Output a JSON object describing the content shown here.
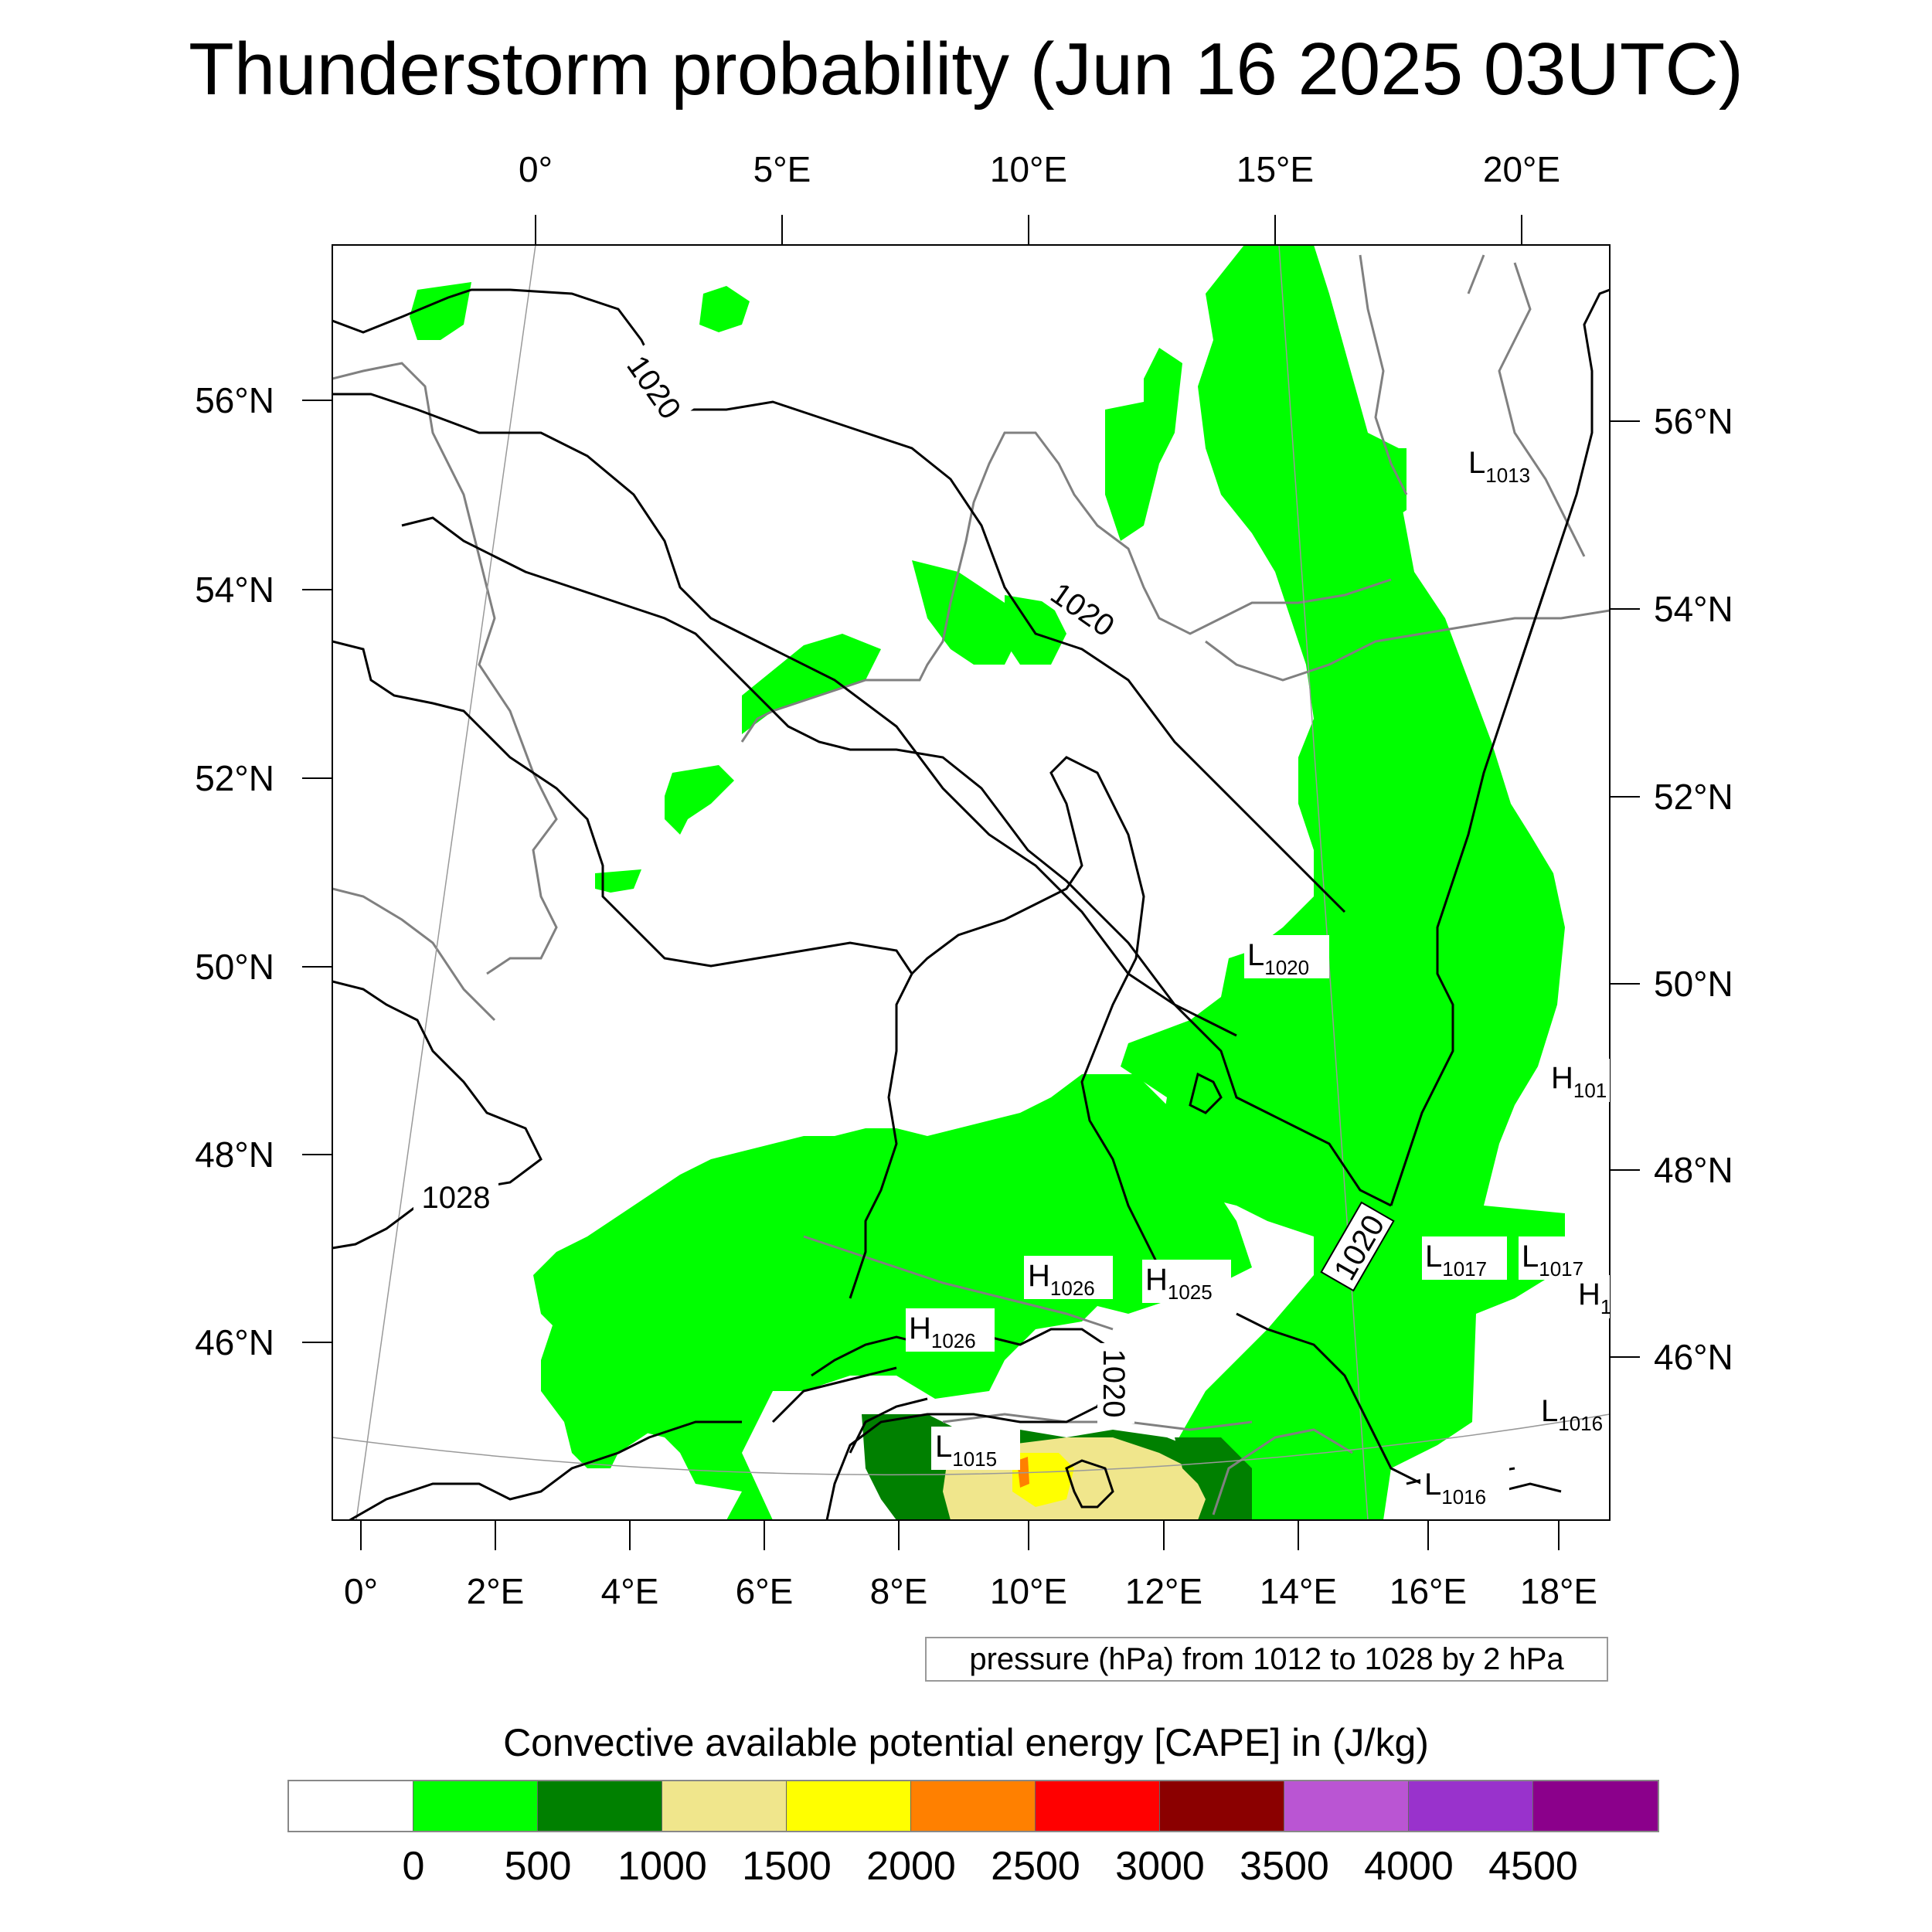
{
  "title": "Thunderstorm probability (Jun 16 2025 03UTC)",
  "map": {
    "top_lon_labels": [
      "0°",
      "5°E",
      "10°E",
      "15°E",
      "20°E"
    ],
    "bottom_lon_labels": [
      "0°",
      "2°E",
      "4°E",
      "6°E",
      "8°E",
      "10°E",
      "12°E",
      "14°E",
      "16°E",
      "18°E"
    ],
    "left_lat_labels": [
      "56°N",
      "54°N",
      "52°N",
      "50°N",
      "48°N",
      "46°N"
    ],
    "right_lat_labels": [
      "56°N",
      "54°N",
      "52°N",
      "50°N",
      "48°N",
      "46°N"
    ],
    "isobar_labels": [
      "1020",
      "1020",
      "1028",
      "1020",
      "1020"
    ],
    "pressure_centers": [
      {
        "letter": "L",
        "value": "1013"
      },
      {
        "letter": "L",
        "value": "1020"
      },
      {
        "letter": "H",
        "value": "101"
      },
      {
        "letter": "L",
        "value": "1017"
      },
      {
        "letter": "L",
        "value": "1017"
      },
      {
        "letter": "H",
        "value": "1"
      },
      {
        "letter": "H",
        "value": "1026"
      },
      {
        "letter": "H",
        "value": "1025"
      },
      {
        "letter": "H",
        "value": "1026"
      },
      {
        "letter": "L",
        "value": "1015"
      },
      {
        "letter": "L",
        "value": "1016"
      },
      {
        "letter": "L",
        "value": "1016"
      }
    ]
  },
  "caption": "pressure (hPa) from 1012 to 1028 by 2 hPa",
  "colorbar": {
    "title": "Convective available potential energy [CAPE] in (J/kg)",
    "colors": [
      "#ffffff",
      "#00ff00",
      "#008000",
      "#f0e68c",
      "#ffff00",
      "#ff8000",
      "#ff0000",
      "#8b0000",
      "#ba55d3",
      "#9932cc",
      "#8b008b"
    ],
    "labels": [
      "0",
      "500",
      "1000",
      "1500",
      "2000",
      "2500",
      "3000",
      "3500",
      "4000",
      "4500"
    ]
  }
}
